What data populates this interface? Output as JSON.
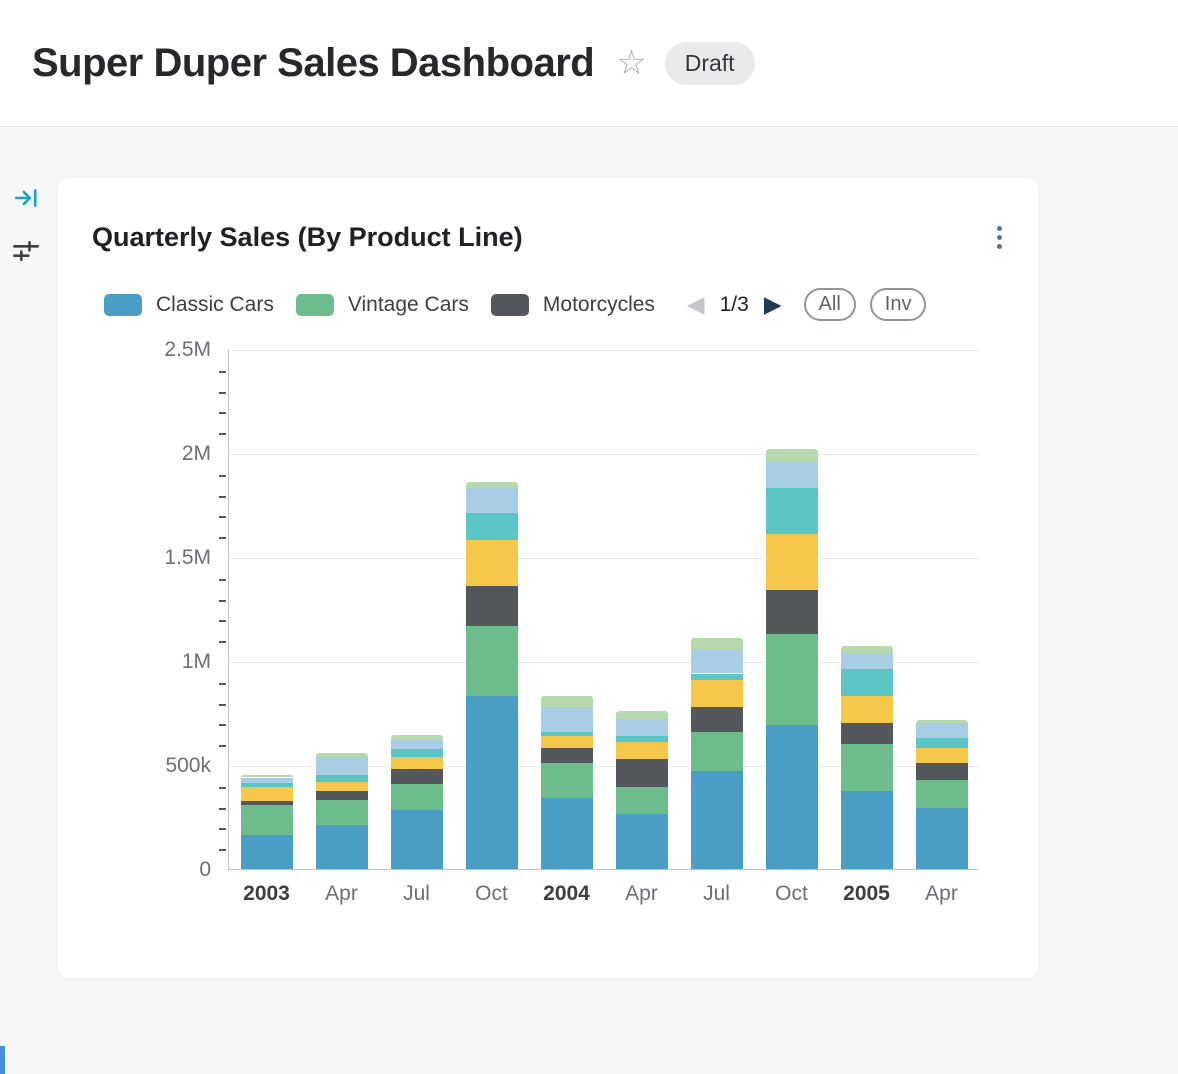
{
  "header": {
    "title": "Super Duper Sales Dashboard",
    "badge": "Draft"
  },
  "icons": {
    "star": "☆",
    "prev": "◀",
    "next": "▶"
  },
  "card": {
    "title": "Quarterly Sales (By Product Line)",
    "legend": [
      {
        "label": "Classic Cars",
        "color": "#4a9dc4"
      },
      {
        "label": "Vintage Cars",
        "color": "#6cbd8b"
      },
      {
        "label": "Motorcycles",
        "color": "#54575b"
      }
    ],
    "pagination": {
      "label": "1/3"
    },
    "buttons": [
      {
        "label": "All"
      },
      {
        "label": "Inv"
      }
    ]
  },
  "chart_data": {
    "type": "bar",
    "stacked": true,
    "title": "Quarterly Sales (By Product Line)",
    "categories": [
      "2003",
      "Apr",
      "Jul",
      "Oct",
      "2004",
      "Apr",
      "Jul",
      "Oct",
      "2005",
      "Apr"
    ],
    "emphasized_categories": [
      0,
      4,
      8
    ],
    "ylim": [
      0,
      2500000
    ],
    "yticks": [
      {
        "value": 0,
        "label": "0"
      },
      {
        "value": 500000,
        "label": "500k"
      },
      {
        "value": 1000000,
        "label": "1M"
      },
      {
        "value": 1500000,
        "label": "1.5M"
      },
      {
        "value": 2000000,
        "label": "2M"
      },
      {
        "value": 2500000,
        "label": "2.5M"
      }
    ],
    "minor_tick_step": 100000,
    "grid": true,
    "legend_position": "top",
    "legend_pages": "1/3",
    "series": [
      {
        "name": "Classic Cars",
        "color": "#4a9dc4",
        "in_visible_legend": true,
        "values": [
          165000,
          210000,
          285000,
          830000,
          340000,
          265000,
          470000,
          690000,
          375000,
          295000
        ]
      },
      {
        "name": "Vintage Cars",
        "color": "#6cbd8b",
        "in_visible_legend": true,
        "values": [
          145000,
          120000,
          125000,
          340000,
          170000,
          130000,
          190000,
          440000,
          225000,
          135000
        ]
      },
      {
        "name": "Motorcycles",
        "color": "#54575b",
        "in_visible_legend": true,
        "values": [
          15000,
          45000,
          70000,
          190000,
          70000,
          135000,
          120000,
          210000,
          100000,
          80000
        ]
      },
      {
        "name": "unlabeled-yellow",
        "color": "#f5c84c",
        "in_visible_legend": false,
        "values": [
          70000,
          45000,
          60000,
          220000,
          60000,
          80000,
          130000,
          270000,
          130000,
          70000
        ]
      },
      {
        "name": "unlabeled-teal",
        "color": "#5cc5c5",
        "in_visible_legend": false,
        "values": [
          20000,
          30000,
          35000,
          130000,
          20000,
          30000,
          30000,
          220000,
          130000,
          50000
        ]
      },
      {
        "name": "unlabeled-light-blue",
        "color": "#a8cde4",
        "in_visible_legend": false,
        "values": [
          25000,
          90000,
          45000,
          120000,
          120000,
          80000,
          120000,
          130000,
          80000,
          70000
        ]
      },
      {
        "name": "unlabeled-light-green",
        "color": "#b8d9ad",
        "in_visible_legend": false,
        "values": [
          10000,
          20000,
          25000,
          30000,
          50000,
          40000,
          50000,
          60000,
          30000,
          15000
        ]
      }
    ]
  }
}
